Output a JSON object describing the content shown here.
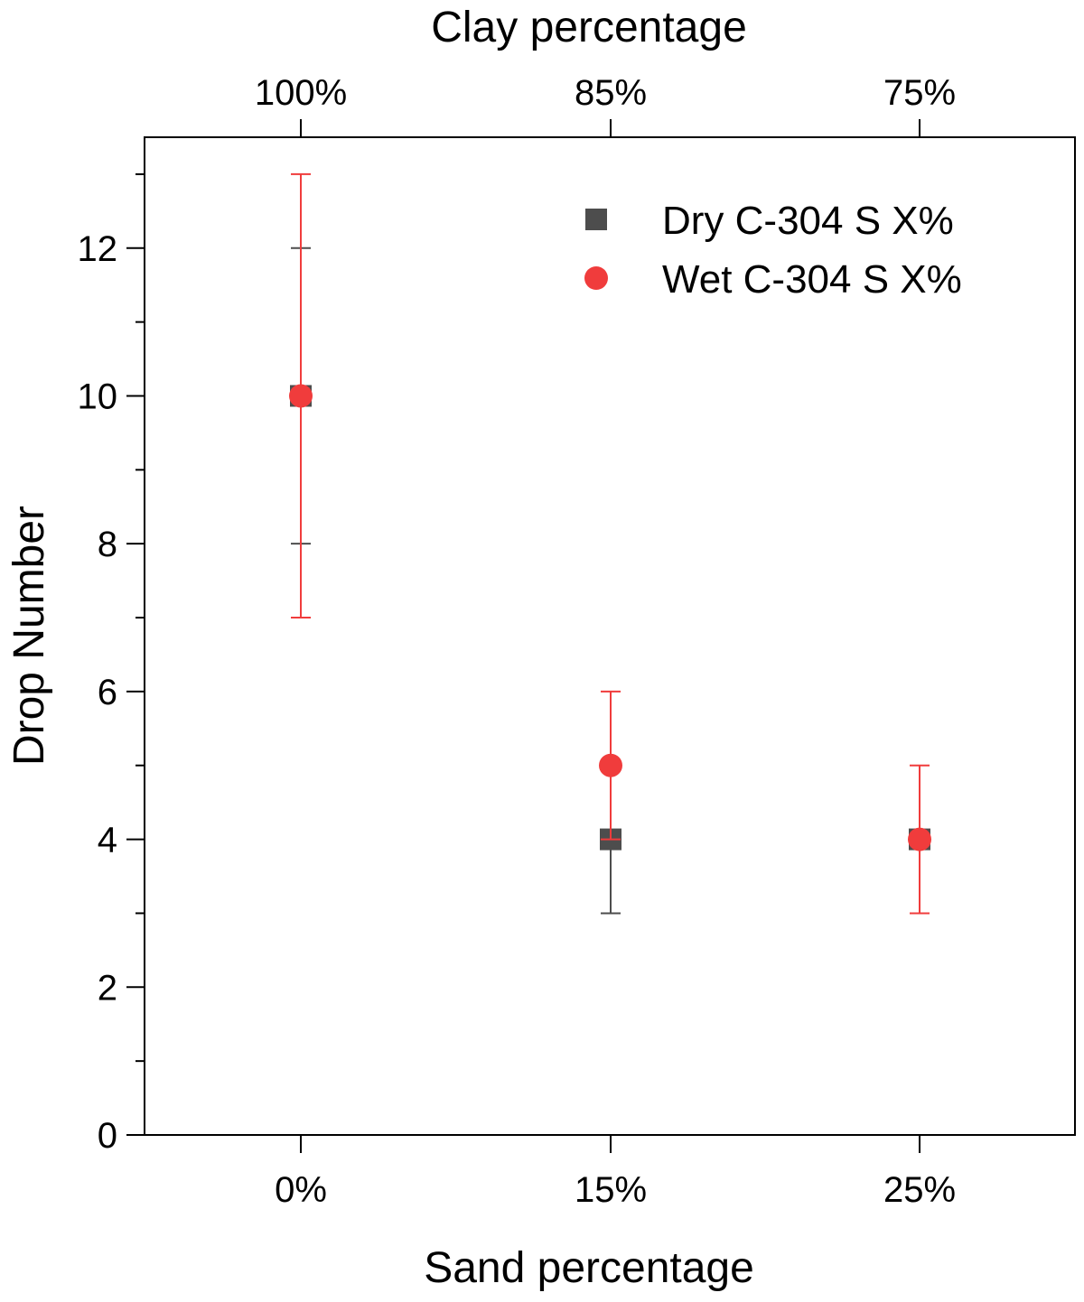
{
  "chart_data": {
    "type": "scatter",
    "title": "",
    "xlabel": "Sand percentage",
    "x2label": "Clay percentage",
    "ylabel": "Drop Number",
    "categories": [
      "0%",
      "15%",
      "25%"
    ],
    "top_categories": [
      "100%",
      "85%",
      "75%"
    ],
    "ylim": [
      0,
      13.5
    ],
    "yticks": [
      "0",
      "2",
      "4",
      "6",
      "8",
      "10",
      "12"
    ],
    "legend_position": "top-right",
    "grid": false,
    "series": [
      {
        "name": "Dry C-304 S X%",
        "marker": "square",
        "color": "#4d4d4d",
        "values": [
          10,
          4,
          4
        ],
        "error_low": [
          8,
          3,
          4
        ],
        "error_high": [
          12,
          5,
          4
        ]
      },
      {
        "name": "Wet C-304 S X%",
        "marker": "circle",
        "color": "#f03c3c",
        "values": [
          10,
          5,
          4
        ],
        "error_low": [
          7,
          4,
          3
        ],
        "error_high": [
          13,
          6,
          5
        ]
      }
    ]
  }
}
